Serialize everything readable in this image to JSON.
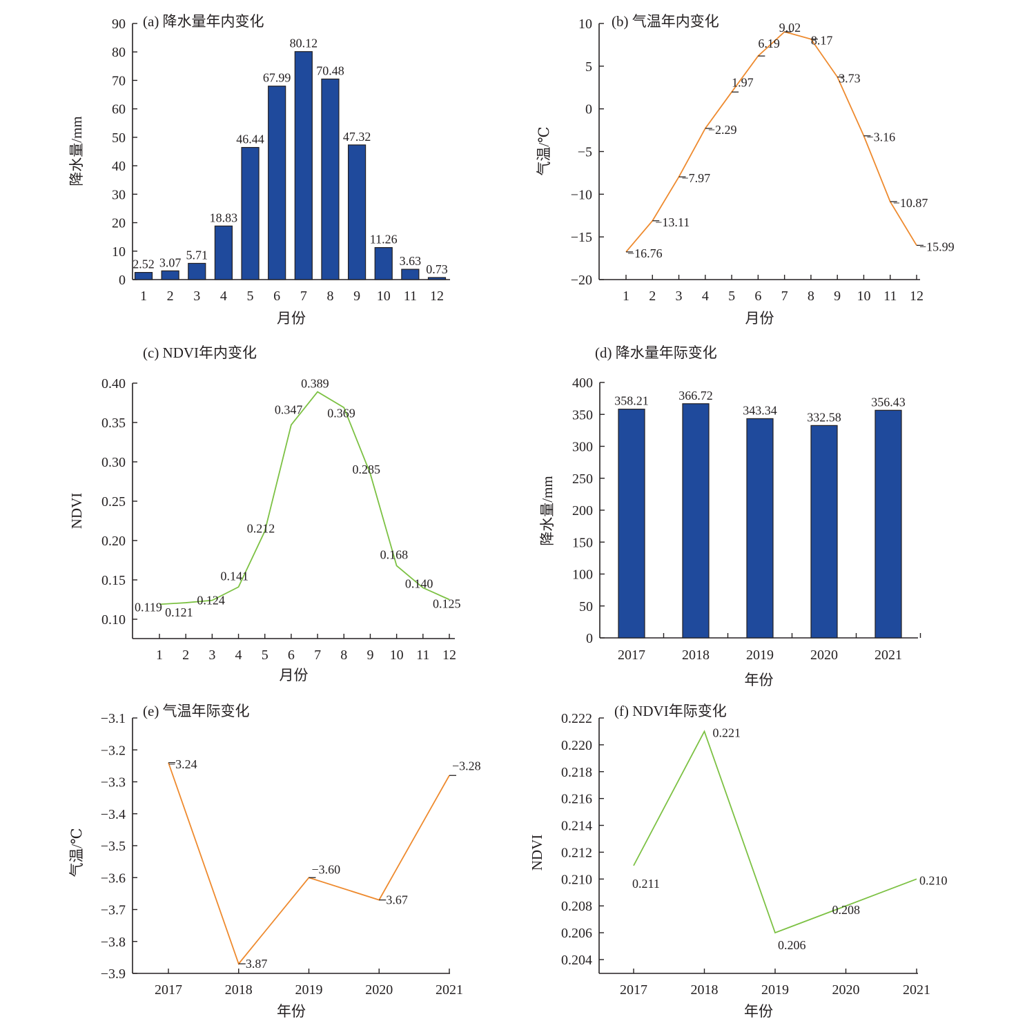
{
  "chart_data": [
    {
      "id": "a",
      "type": "bar",
      "title": "(a) 降水量年内变化",
      "xlabel": "月份",
      "ylabel": "降水量/mm",
      "categories": [
        "1",
        "2",
        "3",
        "4",
        "5",
        "6",
        "7",
        "8",
        "9",
        "10",
        "11",
        "12"
      ],
      "values": [
        2.52,
        3.07,
        5.71,
        18.83,
        46.44,
        67.99,
        80.12,
        70.48,
        47.32,
        11.26,
        3.63,
        0.73
      ],
      "value_labels": [
        "2.52",
        "3.07",
        "5.71",
        "18.83",
        "46.44",
        "67.99",
        "80.12",
        "70.48",
        "47.32",
        "11.26",
        "3.63",
        "0.73"
      ],
      "ylim": [
        0,
        90
      ],
      "yticks": [
        0,
        10,
        20,
        30,
        40,
        50,
        60,
        70,
        80,
        90
      ],
      "ytick_labels": [
        "0",
        "10",
        "20",
        "30",
        "40",
        "50",
        "60",
        "70",
        "80",
        "90"
      ],
      "grid": false,
      "color": "#1f4a9c"
    },
    {
      "id": "b",
      "type": "line",
      "title": "(b) 气温年内变化",
      "xlabel": "月份",
      "ylabel": "气温/℃",
      "categories": [
        "1",
        "2",
        "3",
        "4",
        "5",
        "6",
        "7",
        "8",
        "9",
        "10",
        "11",
        "12"
      ],
      "values": [
        -16.76,
        -13.11,
        -7.97,
        -2.29,
        1.97,
        6.19,
        9.02,
        8.17,
        3.73,
        -3.16,
        -10.87,
        -15.99
      ],
      "value_labels": [
        "−16.76",
        "−13.11",
        "−7.97",
        "−2.29",
        "1.97",
        "6.19",
        "9.02",
        "8.17",
        "3.73",
        "−3.16",
        "−10.87",
        "−15.99"
      ],
      "ylim": [
        -20,
        10
      ],
      "yticks": [
        -20,
        -15,
        -10,
        -5,
        0,
        5,
        10
      ],
      "ytick_labels": [
        "−20",
        "−15",
        "−10",
        "−5",
        "0",
        "5",
        "10"
      ],
      "grid": false,
      "color": "#ee8a2e"
    },
    {
      "id": "c",
      "type": "line",
      "title": "(c) NDVI年内变化",
      "xlabel": "月份",
      "ylabel": "NDVI",
      "categories": [
        "1",
        "2",
        "3",
        "4",
        "5",
        "6",
        "7",
        "8",
        "9",
        "10",
        "11",
        "12"
      ],
      "values": [
        0.119,
        0.121,
        0.124,
        0.141,
        0.212,
        0.347,
        0.389,
        0.369,
        0.285,
        0.168,
        0.14,
        0.125
      ],
      "value_labels": [
        "0.119",
        "0.121",
        "0.124",
        "0.141",
        "0.212",
        "0.347",
        "0.389",
        "0.369",
        "0.285",
        "0.168",
        "0.140",
        "0.125"
      ],
      "ylim": [
        0.075,
        0.4
      ],
      "yticks": [
        0.1,
        0.15,
        0.2,
        0.25,
        0.3,
        0.35,
        0.4
      ],
      "ytick_labels": [
        "0.10",
        "0.15",
        "0.20",
        "0.25",
        "0.30",
        "0.35",
        "0.40"
      ],
      "grid": false,
      "color": "#7cc143"
    },
    {
      "id": "d",
      "type": "bar",
      "title": "(d) 降水量年际变化",
      "xlabel": "年份",
      "ylabel": "降水量/mm",
      "categories": [
        "2017",
        "2018",
        "2019",
        "2020",
        "2021"
      ],
      "values": [
        358.21,
        366.72,
        343.34,
        332.58,
        356.43
      ],
      "value_labels": [
        "358.21",
        "366.72",
        "343.34",
        "332.58",
        "356.43"
      ],
      "ylim": [
        0,
        400
      ],
      "yticks": [
        0,
        50,
        100,
        150,
        200,
        250,
        300,
        350,
        400
      ],
      "ytick_labels": [
        "0",
        "50",
        "100",
        "150",
        "200",
        "250",
        "300",
        "350",
        "400"
      ],
      "grid": false,
      "color": "#1f4a9c"
    },
    {
      "id": "e",
      "type": "line",
      "title": "(e) 气温年际变化",
      "xlabel": "年份",
      "ylabel": "气温/℃",
      "categories": [
        "2017",
        "2018",
        "2019",
        "2020",
        "2021"
      ],
      "values": [
        -3.24,
        -3.87,
        -3.6,
        -3.67,
        -3.28
      ],
      "value_labels": [
        "−3.24",
        "−3.87",
        "−3.60",
        "−3.67",
        "−3.28"
      ],
      "ylim": [
        -3.9,
        -3.1
      ],
      "yticks": [
        -3.9,
        -3.8,
        -3.7,
        -3.6,
        -3.5,
        -3.4,
        -3.3,
        -3.2,
        -3.1
      ],
      "ytick_labels": [
        "−3.9",
        "−3.8",
        "−3.7",
        "−3.6",
        "−3.5",
        "−3.4",
        "−3.3",
        "−3.2",
        "−3.1"
      ],
      "grid": false,
      "color": "#ee8a2e"
    },
    {
      "id": "f",
      "type": "line",
      "title": "(f) NDVI年际变化",
      "xlabel": "年份",
      "ylabel": "NDVI",
      "categories": [
        "2017",
        "2018",
        "2019",
        "2020",
        "2021"
      ],
      "values": [
        0.211,
        0.221,
        0.206,
        0.208,
        0.21
      ],
      "value_labels": [
        "0.211",
        "0.221",
        "0.206",
        "0.208",
        "0.210"
      ],
      "ylim": [
        0.203,
        0.222
      ],
      "yticks": [
        0.204,
        0.206,
        0.208,
        0.21,
        0.212,
        0.214,
        0.216,
        0.218,
        0.22,
        0.222
      ],
      "ytick_labels": [
        "0.204",
        "0.206",
        "0.208",
        "0.210",
        "0.212",
        "0.214",
        "0.216",
        "0.218",
        "0.220",
        "0.222"
      ],
      "grid": false,
      "color": "#7cc143"
    }
  ]
}
